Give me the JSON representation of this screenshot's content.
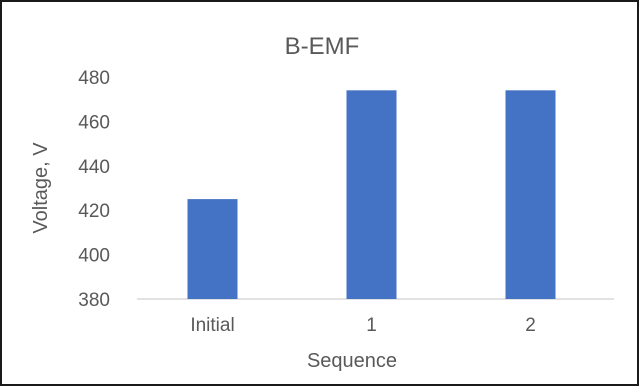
{
  "chart_data": {
    "type": "bar",
    "title": "B-EMF",
    "xlabel": "Sequence",
    "ylabel": "Voltage, V",
    "categories": [
      "Initial",
      "1",
      "2"
    ],
    "values": [
      425,
      474,
      474
    ],
    "ylim": [
      380,
      480
    ],
    "yticks": [
      380,
      400,
      420,
      440,
      460,
      480
    ],
    "grid": false,
    "legend": "none",
    "bar_color": "#4472C4",
    "axis_color": "#D9D9D9",
    "text_color": "#595959"
  }
}
